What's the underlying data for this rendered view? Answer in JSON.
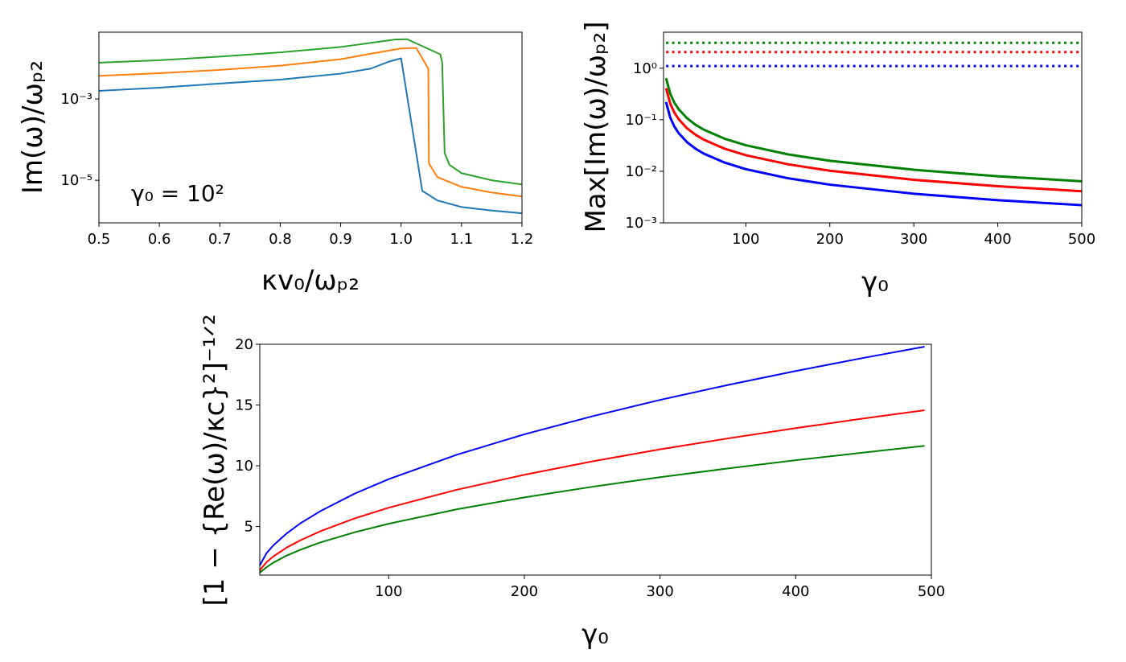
{
  "chart_data": [
    {
      "type": "line",
      "xlabel": "κv₀/ωₚ₂",
      "ylabel": "Im(ω)/ωₚ₂",
      "annotation": "γ₀ = 10²",
      "xlim": [
        0.5,
        1.2
      ],
      "xticks": [
        0.5,
        0.6,
        0.7,
        0.8,
        0.9,
        {
          "value": 1,
          "label": "1.0"
        },
        1.1,
        1.2
      ],
      "ylim": [
        9e-07,
        0.044
      ],
      "ylog": true,
      "yticks": [
        {
          "value": 1e-05,
          "label": "10⁻⁵"
        },
        {
          "value": 0.001,
          "label": "10⁻³"
        }
      ],
      "series": [
        {
          "color": "#1f77b4",
          "x": [
            0.5,
            0.6,
            0.7,
            0.8,
            0.9,
            0.95,
            0.98,
            1.0,
            1.035,
            1.06,
            1.1,
            1.15,
            1.2
          ],
          "values": [
            0.00158,
            0.0019,
            0.0024,
            0.003,
            0.0042,
            0.0056,
            0.0083,
            0.01,
            5.5e-06,
            3.2e-06,
            2.2e-06,
            1.8e-06,
            1.55e-06
          ]
        },
        {
          "color": "#ff7f0e",
          "x": [
            0.5,
            0.6,
            0.7,
            0.8,
            0.9,
            0.95,
            1.0,
            1.025,
            1.045,
            1.046,
            1.06,
            1.1,
            1.15,
            1.2
          ],
          "values": [
            0.0037,
            0.0043,
            0.0052,
            0.0066,
            0.0095,
            0.013,
            0.0175,
            0.018,
            0.0056,
            2.6e-05,
            1.2e-05,
            6.9e-06,
            5e-06,
            4e-06
          ]
        },
        {
          "color": "#2ca02c",
          "x": [
            0.5,
            0.6,
            0.7,
            0.8,
            0.9,
            0.95,
            0.99,
            1.01,
            1.065,
            1.068,
            1.072,
            1.08,
            1.1,
            1.15,
            1.2
          ],
          "values": [
            0.0078,
            0.009,
            0.011,
            0.014,
            0.019,
            0.024,
            0.029,
            0.0295,
            0.0125,
            0.0078,
            4.7e-05,
            2.4e-05,
            1.5e-05,
            1e-05,
            7.9e-06
          ]
        }
      ]
    },
    {
      "type": "line",
      "xlabel": "γ₀",
      "ylabel": "Max[Im(ω)/ωₚ₂]",
      "xlim": [
        2,
        500
      ],
      "xticks": [
        100,
        200,
        300,
        400,
        500
      ],
      "ylim": [
        0.001,
        5
      ],
      "ylog": true,
      "yticks": [
        {
          "value": 0.001,
          "label": "10⁻³"
        },
        {
          "value": 0.01,
          "label": "10⁻²"
        },
        {
          "value": 0.1,
          "label": "10⁻¹"
        },
        {
          "value": 1,
          "label": "10⁰"
        }
      ],
      "series": [
        {
          "color": "#0000ff",
          "dash": "dotted",
          "x": [
            5,
            500
          ],
          "values": [
            1.1,
            1.1
          ]
        },
        {
          "color": "#ff0000",
          "dash": "dotted",
          "x": [
            5,
            500
          ],
          "values": [
            2.05,
            2.05
          ]
        },
        {
          "color": "#008000",
          "dash": "dotted",
          "x": [
            5,
            500
          ],
          "values": [
            3.1,
            3.1
          ]
        },
        {
          "color": "#0000ff",
          "x": [
            5,
            10,
            15,
            20,
            30,
            40,
            50,
            75,
            100,
            150,
            200,
            300,
            400,
            500
          ],
          "values": [
            0.22,
            0.11,
            0.0733,
            0.055,
            0.0367,
            0.0275,
            0.022,
            0.0147,
            0.011,
            0.00733,
            0.0055,
            0.00367,
            0.00275,
            0.0022
          ]
        },
        {
          "color": "#ff0000",
          "x": [
            5,
            10,
            15,
            20,
            30,
            40,
            50,
            75,
            100,
            150,
            200,
            300,
            400,
            500
          ],
          "values": [
            0.41,
            0.205,
            0.137,
            0.1025,
            0.0683,
            0.0513,
            0.041,
            0.0273,
            0.0205,
            0.0137,
            0.01025,
            0.00683,
            0.00513,
            0.0041
          ]
        },
        {
          "color": "#008000",
          "x": [
            5,
            10,
            15,
            20,
            30,
            40,
            50,
            75,
            100,
            150,
            200,
            300,
            400,
            500
          ],
          "values": [
            0.64,
            0.32,
            0.213,
            0.16,
            0.107,
            0.08,
            0.064,
            0.0427,
            0.032,
            0.0213,
            0.016,
            0.0107,
            0.008,
            0.0064
          ]
        }
      ]
    },
    {
      "type": "line",
      "xlabel": "γ₀",
      "ylabel": "[1 − {Re(ω)/κc}²]⁻¹ᐟ²",
      "xlim": [
        5,
        500
      ],
      "xticks": [
        100,
        200,
        300,
        400,
        500
      ],
      "ylim": [
        1,
        20
      ],
      "yticks": [
        5,
        10,
        15,
        20
      ],
      "series": [
        {
          "color": "#0000ff",
          "x": [
            5,
            10,
            15,
            25,
            35,
            50,
            75,
            100,
            150,
            200,
            250,
            300,
            350,
            400,
            450,
            495
          ],
          "values": [
            1.8,
            2.81,
            3.45,
            4.45,
            5.27,
            6.29,
            7.71,
            8.9,
            10.9,
            12.59,
            14.07,
            15.42,
            16.65,
            17.8,
            18.88,
            19.8
          ]
        },
        {
          "color": "#ff0000",
          "x": [
            5,
            10,
            15,
            25,
            35,
            50,
            75,
            100,
            150,
            200,
            250,
            300,
            350,
            400,
            450,
            495
          ],
          "values": [
            1.4,
            2.07,
            2.54,
            3.28,
            3.87,
            4.63,
            5.67,
            6.55,
            8.02,
            9.26,
            10.36,
            11.35,
            12.25,
            13.1,
            13.89,
            14.57
          ]
        },
        {
          "color": "#008000",
          "x": [
            5,
            10,
            15,
            25,
            35,
            50,
            75,
            100,
            150,
            200,
            250,
            300,
            350,
            400,
            450,
            495
          ],
          "values": [
            1.2,
            1.65,
            2.03,
            2.62,
            3.09,
            3.7,
            4.53,
            5.23,
            6.41,
            7.4,
            8.27,
            9.06,
            9.78,
            10.46,
            11.09,
            11.64
          ]
        }
      ]
    }
  ]
}
